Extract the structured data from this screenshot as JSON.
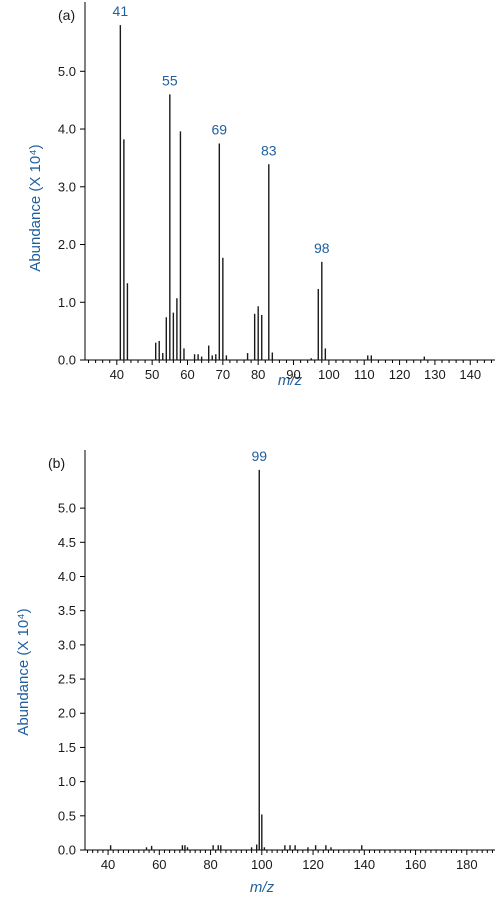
{
  "colors": {
    "label": "#1f5f9e",
    "bar": "#1a1a1a",
    "axis": "#000000"
  },
  "chart_data": [
    {
      "type": "bar",
      "panel_label": "(a)",
      "xlabel": "m/z",
      "ylabel": "Abundance (X 10⁴)",
      "xlim": [
        31,
        147
      ],
      "ylim": [
        0,
        6.2
      ],
      "xticks": [
        40,
        50,
        60,
        70,
        80,
        90,
        100,
        110,
        120,
        130,
        140
      ],
      "yticks": [
        0.0,
        1.0,
        2.0,
        3.0,
        4.0,
        5.0
      ],
      "ytick_labels": [
        "0.0",
        "1.0",
        "2.0",
        "3.0",
        "4.0",
        "5.0"
      ],
      "peaks": [
        [
          41,
          5.8
        ],
        [
          42,
          3.82
        ],
        [
          43,
          1.33
        ],
        [
          51,
          0.3
        ],
        [
          52,
          0.33
        ],
        [
          53,
          0.12
        ],
        [
          54,
          0.74
        ],
        [
          55,
          4.6
        ],
        [
          56,
          0.82
        ],
        [
          57,
          1.07
        ],
        [
          58,
          3.96
        ],
        [
          59,
          0.2
        ],
        [
          62,
          0.1
        ],
        [
          63,
          0.1
        ],
        [
          64,
          0.06
        ],
        [
          66,
          0.25
        ],
        [
          67,
          0.08
        ],
        [
          68,
          0.1
        ],
        [
          69,
          3.75
        ],
        [
          70,
          1.77
        ],
        [
          71,
          0.08
        ],
        [
          77,
          0.12
        ],
        [
          79,
          0.8
        ],
        [
          80,
          0.93
        ],
        [
          81,
          0.78
        ],
        [
          83,
          3.39
        ],
        [
          84,
          0.13
        ],
        [
          95,
          0.03
        ],
        [
          97,
          1.23
        ],
        [
          98,
          1.7
        ],
        [
          99,
          0.2
        ],
        [
          111,
          0.08
        ],
        [
          112,
          0.08
        ],
        [
          127,
          0.06
        ]
      ],
      "annotations": [
        {
          "text": "41",
          "x": 41,
          "y": 5.8
        },
        {
          "text": "55",
          "x": 55,
          "y": 4.6
        },
        {
          "text": "69",
          "x": 69,
          "y": 3.75
        },
        {
          "text": "83",
          "x": 83,
          "y": 3.39
        },
        {
          "text": "98",
          "x": 98,
          "y": 1.7
        }
      ]
    },
    {
      "type": "bar",
      "panel_label": "(b)",
      "xlabel": "m/z",
      "ylabel": "Abundance (X 10⁴)",
      "xlim": [
        31,
        191
      ],
      "ylim": [
        0,
        5.85
      ],
      "xticks": [
        40,
        60,
        80,
        100,
        120,
        140,
        160,
        180
      ],
      "yticks": [
        0.0,
        0.5,
        1.0,
        1.5,
        2.0,
        2.5,
        3.0,
        3.5,
        4.0,
        4.5,
        5.0
      ],
      "ytick_labels": [
        "0.0",
        "0.5",
        "1.0",
        "1.5",
        "2.0",
        "2.5",
        "3.0",
        "3.5",
        "4.0",
        "4.5",
        "5.0"
      ],
      "peaks": [
        [
          41,
          0.07
        ],
        [
          55,
          0.04
        ],
        [
          57,
          0.06
        ],
        [
          69,
          0.07
        ],
        [
          70,
          0.07
        ],
        [
          71,
          0.04
        ],
        [
          81,
          0.07
        ],
        [
          83,
          0.07
        ],
        [
          84,
          0.07
        ],
        [
          96,
          0.04
        ],
        [
          98,
          0.08
        ],
        [
          99,
          5.56
        ],
        [
          100,
          0.52
        ],
        [
          101,
          0.04
        ],
        [
          109,
          0.07
        ],
        [
          111,
          0.07
        ],
        [
          113,
          0.07
        ],
        [
          118,
          0.04
        ],
        [
          121,
          0.07
        ],
        [
          125,
          0.07
        ],
        [
          127,
          0.04
        ],
        [
          139,
          0.07
        ]
      ],
      "annotations": [
        {
          "text": "99",
          "x": 99,
          "y": 5.56
        }
      ]
    }
  ]
}
